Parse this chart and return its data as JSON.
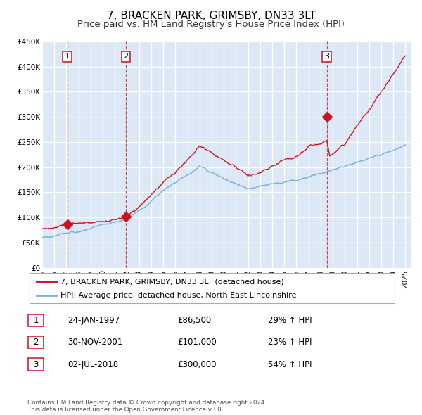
{
  "title": "7, BRACKEN PARK, GRIMSBY, DN33 3LT",
  "subtitle": "Price paid vs. HM Land Registry's House Price Index (HPI)",
  "ylim": [
    0,
    450000
  ],
  "yticks": [
    0,
    50000,
    100000,
    150000,
    200000,
    250000,
    300000,
    350000,
    400000,
    450000
  ],
  "ytick_labels": [
    "£0",
    "£50K",
    "£100K",
    "£150K",
    "£200K",
    "£250K",
    "£300K",
    "£350K",
    "£400K",
    "£450K"
  ],
  "xlim_start": 1995.0,
  "xlim_end": 2025.5,
  "hpi_color": "#7ab4d8",
  "price_color": "#cc1122",
  "sale_dates": [
    1997.07,
    2001.92,
    2018.5
  ],
  "sale_prices": [
    86500,
    101000,
    300000
  ],
  "sale_labels": [
    "1",
    "2",
    "3"
  ],
  "vline_dates": [
    1997.07,
    2001.92,
    2018.5
  ],
  "legend_price_label": "7, BRACKEN PARK, GRIMSBY, DN33 3LT (detached house)",
  "legend_hpi_label": "HPI: Average price, detached house, North East Lincolnshire",
  "table_rows": [
    {
      "num": "1",
      "date": "24-JAN-1997",
      "price": "£86,500",
      "hpi": "29% ↑ HPI"
    },
    {
      "num": "2",
      "date": "30-NOV-2001",
      "price": "£101,000",
      "hpi": "23% ↑ HPI"
    },
    {
      "num": "3",
      "date": "02-JUL-2018",
      "price": "£300,000",
      "hpi": "54% ↑ HPI"
    }
  ],
  "footer": "Contains HM Land Registry data © Crown copyright and database right 2024.\nThis data is licensed under the Open Government Licence v3.0.",
  "bg_color": "#ffffff",
  "plot_bg_color": "#dce8f5",
  "grid_color": "#ffffff",
  "title_fontsize": 11,
  "subtitle_fontsize": 9.5,
  "tick_fontsize": 7.5
}
